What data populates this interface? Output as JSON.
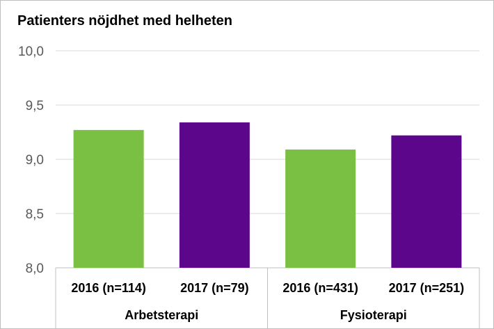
{
  "chart_data": {
    "type": "bar",
    "title": "Patienters nöjdhet med helheten",
    "xlabel": "",
    "ylabel": "",
    "ylim": [
      8.0,
      10.0
    ],
    "yticks": [
      "8,0",
      "8,5",
      "9,0",
      "9,5",
      "10,0"
    ],
    "grid": true,
    "categories": [
      "2016 (n=114)",
      "2017 (n=79)",
      "2016 (n=431)",
      "2017 (n=251)"
    ],
    "groups": [
      {
        "label": "Arbetsterapi",
        "categories": [
          0,
          1
        ]
      },
      {
        "label": "Fysioterapi",
        "categories": [
          2,
          3
        ]
      }
    ],
    "values": [
      9.27,
      9.34,
      9.09,
      9.22
    ],
    "colors": [
      "#7ac143",
      "#5c068c",
      "#7ac143",
      "#5c068c"
    ]
  }
}
